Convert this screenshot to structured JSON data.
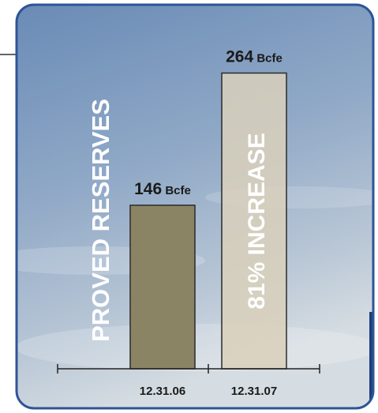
{
  "chart_data": {
    "type": "bar",
    "y_label": "PROVED RESERVES",
    "annotation": "81% INCREASE",
    "unit": "Bcfe",
    "categories": [
      "12.31.06",
      "12.31.07"
    ],
    "values": [
      146,
      264
    ],
    "colors": [
      "#8a8464",
      "#d9d0bb"
    ],
    "ylim": [
      0,
      270
    ]
  }
}
